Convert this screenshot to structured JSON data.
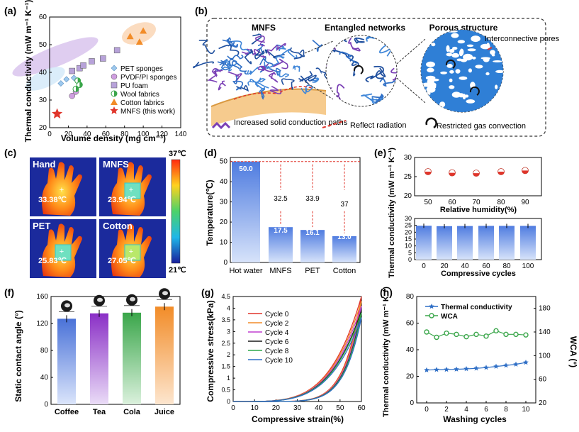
{
  "panel_labels": [
    "(a)",
    "(b)",
    "(c)",
    "(d)",
    "(e)",
    "(f)",
    "(g)",
    "(h)"
  ],
  "colors": {
    "blue_fiber": "#2f6fc6",
    "purple": "#7a3fb5",
    "red": "#e0352b",
    "orange": "#f28c28",
    "green": "#3aa64a",
    "bar_blue": "#3f6fd8",
    "thermal_bg": "#1b2a9c"
  },
  "panel_b": {
    "section_titles": [
      "MNFS",
      "Entangled networks",
      "Porous structure"
    ],
    "callout": "Interconnective pores",
    "legend": [
      "Increased solid conduction paths",
      "Reflect radiation",
      "Restricted gas convection"
    ]
  },
  "panel_c": {
    "colorbar_max": "37℃",
    "colorbar_min": "21℃",
    "tiles": [
      {
        "label": "Hand",
        "temp": "33.38℃"
      },
      {
        "label": "MNFS",
        "temp": "23.94℃"
      },
      {
        "label": "PET",
        "temp": "25.83℃"
      },
      {
        "label": "Cotton",
        "temp": "27.05℃"
      }
    ]
  },
  "chart_data": [
    {
      "id": "a",
      "type": "scatter",
      "xlabel": "Volume density (mg cm⁻³)",
      "ylabel": "Thermal conductivity (mW m⁻¹ K⁻¹)",
      "xlim": [
        0,
        140
      ],
      "ylim": [
        20,
        60
      ],
      "xticks": [
        0,
        20,
        40,
        60,
        80,
        100,
        120,
        140
      ],
      "yticks": [
        20,
        30,
        40,
        50,
        60
      ],
      "series": [
        {
          "name": "PET sponges",
          "marker": "diamond",
          "color": "#9ec9ee",
          "points": [
            [
              12,
              36
            ],
            [
              18,
              37.5
            ],
            [
              26,
              38
            ]
          ]
        },
        {
          "name": "PVDF/PI sponges",
          "marker": "circle",
          "color": "#cf9ee0",
          "points": [
            [
              24,
              31.5
            ],
            [
              28,
              33
            ]
          ]
        },
        {
          "name": "PU foam",
          "marker": "square",
          "color": "#b7a2d9",
          "points": [
            [
              24,
              40.5
            ],
            [
              32,
              41.5
            ],
            [
              36,
              42.5
            ],
            [
              45,
              44
            ],
            [
              57,
              45
            ],
            [
              72,
              48
            ]
          ]
        },
        {
          "name": "Wool fabrics",
          "marker": "halfcircle",
          "color": "#3aa64a",
          "points": [
            [
              30,
              37
            ],
            [
              32,
              35.5
            ],
            [
              28,
              34
            ]
          ]
        },
        {
          "name": "Cotton fabrics",
          "marker": "triangle",
          "color": "#f28c28",
          "points": [
            [
              86,
              53
            ],
            [
              96,
              51
            ],
            [
              100,
              55
            ]
          ]
        },
        {
          "name": "MNFS (this work)",
          "marker": "star",
          "color": "#e0352b",
          "points": [
            [
              8,
              25
            ]
          ]
        }
      ]
    },
    {
      "id": "d",
      "type": "bar",
      "ylabel": "Temperature(℃)",
      "categories": [
        "Hot water",
        "MNFS",
        "PET",
        "Cotton"
      ],
      "values": [
        50.0,
        17.5,
        16.1,
        13.0
      ],
      "value_labels": [
        "50.0",
        "17.5",
        "16.1",
        "13.0"
      ],
      "differences": [
        "32.5",
        "33.9",
        "37"
      ],
      "ylim": [
        0,
        52
      ],
      "yticks": [
        0,
        10,
        20,
        30,
        40,
        50
      ]
    },
    {
      "id": "e_top",
      "type": "scatter",
      "xlabel": "Relative humidity(%)",
      "categories": [
        "50",
        "60",
        "70",
        "80",
        "90"
      ],
      "values": [
        26.3,
        26.0,
        25.9,
        26.3,
        26.6
      ],
      "ylim": [
        20,
        30
      ],
      "yticks": [
        20,
        25,
        30
      ]
    },
    {
      "id": "e_bottom",
      "type": "bar",
      "xlabel": "Compressive cycles",
      "categories": [
        "0",
        "20",
        "40",
        "60",
        "80",
        "100"
      ],
      "values": [
        24.7,
        24.4,
        24.5,
        24.6,
        24.6,
        24.6
      ],
      "ylim": [
        0,
        30
      ],
      "yticks": [
        0,
        5,
        10,
        15,
        20,
        25,
        30
      ],
      "shared_ylabel": "Thermal conductivity (mW m⁻¹ K⁻¹)"
    },
    {
      "id": "f",
      "type": "bar",
      "ylabel": "Static contact angle (°)",
      "categories": [
        "Coffee",
        "Tea",
        "Cola",
        "Juice"
      ],
      "values": [
        127,
        135,
        136,
        145
      ],
      "colors": [
        "#4a72d8",
        "#8a2fc6",
        "#3aa64a",
        "#f28c28"
      ],
      "ylim": [
        0,
        160
      ],
      "yticks": [
        0,
        40,
        80,
        120,
        160
      ]
    },
    {
      "id": "g",
      "type": "line",
      "xlabel": "Compressive strain(%)",
      "ylabel": "Compressive stress(kPa)",
      "xlim": [
        0,
        60
      ],
      "ylim": [
        0,
        4.5
      ],
      "xticks": [
        0,
        10,
        20,
        30,
        40,
        50,
        60
      ],
      "yticks": [
        0,
        0.5,
        1,
        1.5,
        2,
        2.5,
        3,
        3.5,
        4,
        4.5
      ],
      "ytick_labels": [
        "0",
        "0.5",
        "1",
        "1.5",
        "2",
        "2.5",
        "3",
        "3.5",
        "4",
        "4.5"
      ],
      "series": [
        {
          "name": "Cycle 0",
          "color": "#e0352b",
          "peak": 4.5
        },
        {
          "name": "Cycle 2",
          "color": "#f28c28",
          "peak": 4.3
        },
        {
          "name": "Cycle 4",
          "color": "#c03fd0",
          "peak": 4.1
        },
        {
          "name": "Cycle 6",
          "color": "#1a1a1a",
          "peak": 3.9
        },
        {
          "name": "Cycle 8",
          "color": "#2fa84a",
          "peak": 3.8
        },
        {
          "name": "Cycle 10",
          "color": "#2f6fc6",
          "peak": 3.6
        }
      ]
    },
    {
      "id": "h",
      "type": "line",
      "xlabel": "Washing cycles",
      "ylabel": "Thermal conductivity (mW m⁻¹ K⁻¹)",
      "ylabel_right": "WCA (°)",
      "x": [
        0,
        1,
        2,
        3,
        4,
        5,
        6,
        7,
        8,
        9,
        10
      ],
      "xticks": [
        0,
        2,
        4,
        6,
        8,
        10
      ],
      "ylim": [
        0,
        80
      ],
      "yticks": [
        0,
        20,
        40,
        60,
        80
      ],
      "ylim_right": [
        20,
        200
      ],
      "yticks_right": [
        20,
        60,
        100,
        140,
        180
      ],
      "series": [
        {
          "name": "Thermal conductivity",
          "axis": "left",
          "color": "#2f6fc6",
          "marker": "star",
          "values": [
            24.7,
            25.0,
            25.1,
            25.3,
            25.6,
            26.0,
            26.6,
            27.4,
            28.2,
            29.0,
            30.4
          ]
        },
        {
          "name": "WCA",
          "axis": "right",
          "color": "#3aa64a",
          "marker": "circle",
          "values": [
            140,
            131,
            138,
            136,
            132,
            136,
            133,
            142,
            136,
            136,
            135
          ]
        }
      ]
    }
  ]
}
